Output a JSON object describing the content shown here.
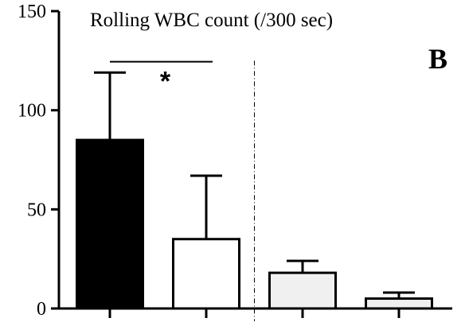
{
  "chart_data": {
    "type": "bar",
    "title": "Rolling WBC count (/300 sec)",
    "panel_label": "B",
    "categories": [
      "",
      "",
      "",
      ""
    ],
    "values": [
      85,
      35,
      18,
      5
    ],
    "error_upper": [
      119,
      67,
      24,
      8
    ],
    "bar_colors": [
      "#000000",
      "#ffffff",
      "#f0f0f0",
      "#f0f0f0"
    ],
    "ylim": [
      0,
      150
    ],
    "yticks": [
      0,
      50,
      100,
      150
    ],
    "ytick_labels": [
      "0",
      "50",
      "100",
      "150"
    ],
    "xlabel": "",
    "ylabel": "",
    "grid": false,
    "significance": {
      "from": 0,
      "to": 1,
      "label": "*"
    },
    "divider_after_category": 1
  }
}
